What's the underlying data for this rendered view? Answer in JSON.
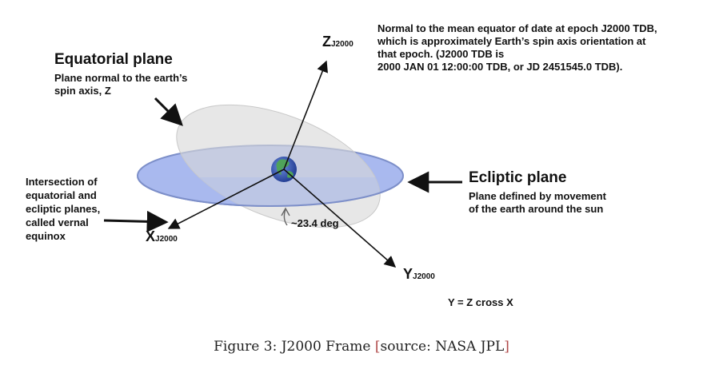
{
  "axes": {
    "z": {
      "letter": "Z",
      "sub": "J2000"
    },
    "x": {
      "letter": "X",
      "sub": "J2000"
    },
    "y": {
      "letter": "Y",
      "sub": "J2000"
    }
  },
  "z_note": {
    "lines": [
      "Normal to the mean equator of date at epoch J2000 TDB,",
      "which is approximately Earth’s spin axis orientation at",
      "that epoch.  (J2000 TDB is",
      "2000 JAN 01 12:00:00 TDB, or JD 2451545.0  TDB)."
    ]
  },
  "equatorial": {
    "title": "Equatorial plane",
    "lines": [
      "Plane normal to the earth’s",
      "spin axis, Z"
    ]
  },
  "ecliptic": {
    "title": "Ecliptic plane",
    "lines": [
      "Plane defined by movement",
      "of the earth around the sun"
    ]
  },
  "equinox": {
    "lines": [
      "Intersection of",
      "equatorial and",
      "ecliptic planes,",
      "called vernal",
      "equinox"
    ]
  },
  "angle_label": "~23.4 deg",
  "cross_note": "Y = Z cross X",
  "caption": {
    "prefix": "Figure 3: J2000 Frame ",
    "open": "[",
    "middle": "source: NASA JPL",
    "close": "]"
  },
  "colors": {
    "ecliptic_fill": "#a9b9ef",
    "ecliptic_stroke": "#7d8fc9",
    "equatorial_fill": "#dcdcdc",
    "earth_ocean": "#3f5fb8",
    "earth_land": "#4fa35a"
  }
}
